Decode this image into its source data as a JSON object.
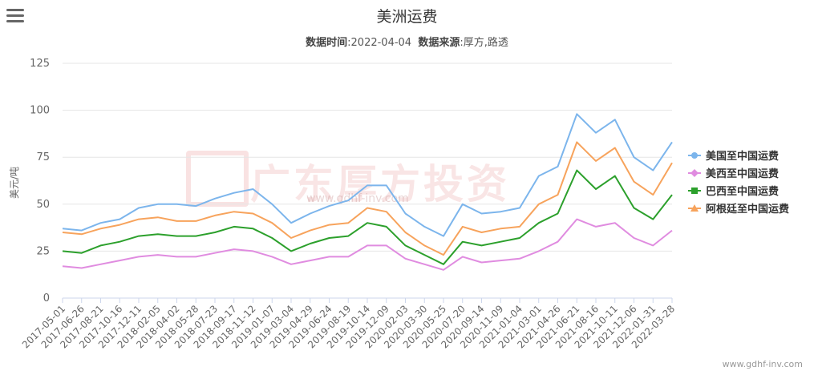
{
  "title": "美洲运费",
  "subtitle": {
    "date_label": "数据时间",
    "date_value": ":2022-04-04",
    "source_label": "数据来源",
    "source_value": ":厚方,路透"
  },
  "watermark": {
    "text": "广东厚方投资",
    "url": "www.gdhf-inv.com"
  },
  "footer_url": "www.gdhf-inv.com",
  "menu_icon": "hamburger-menu-icon",
  "chart_data": {
    "type": "line",
    "title": "美洲运费",
    "ylabel": "美元/吨",
    "ylim": [
      0,
      125
    ],
    "yticks": [
      0,
      25,
      50,
      75,
      100,
      125
    ],
    "grid": true,
    "legend_position": "right",
    "x_tick_labels": [
      "2017-05-01",
      "2017-06-26",
      "2017-08-21",
      "2017-10-16",
      "2017-12-11",
      "2018-02-05",
      "2018-04-02",
      "2018-05-28",
      "2018-07-23",
      "2018-09-17",
      "2018-11-12",
      "2019-01-07",
      "2019-03-04",
      "2019-04-29",
      "2019-06-24",
      "2019-08-19",
      "2019-10-14",
      "2019-12-09",
      "2020-02-03",
      "2020-03-30",
      "2020-05-25",
      "2020-07-20",
      "2020-09-14",
      "2020-11-09",
      "2021-01-04",
      "2021-03-01",
      "2021-04-26",
      "2021-06-21",
      "2021-08-16",
      "2021-10-11",
      "2021-12-06",
      "2022-01-31",
      "2022-03-28"
    ],
    "series": [
      {
        "name": "美国至中国运费",
        "color": "#7cb5ec",
        "marker": "circle",
        "values": [
          37,
          36,
          40,
          42,
          48,
          50,
          50,
          49,
          53,
          56,
          58,
          50,
          40,
          45,
          49,
          52,
          60,
          60,
          45,
          38,
          33,
          50,
          45,
          46,
          48,
          65,
          70,
          98,
          88,
          95,
          75,
          68,
          83
        ]
      },
      {
        "name": "美西至中国运费",
        "color": "#e08ce0",
        "marker": "diamond",
        "values": [
          17,
          16,
          18,
          20,
          22,
          23,
          22,
          22,
          24,
          26,
          25,
          22,
          18,
          20,
          22,
          22,
          28,
          28,
          21,
          18,
          15,
          22,
          19,
          20,
          21,
          25,
          30,
          42,
          38,
          40,
          32,
          28,
          36
        ]
      },
      {
        "name": "巴西至中国运费",
        "color": "#2ca02c",
        "marker": "square",
        "values": [
          25,
          24,
          28,
          30,
          33,
          34,
          33,
          33,
          35,
          38,
          37,
          32,
          25,
          29,
          32,
          33,
          40,
          38,
          28,
          23,
          18,
          30,
          28,
          30,
          32,
          40,
          45,
          68,
          58,
          65,
          48,
          42,
          55
        ]
      },
      {
        "name": "阿根廷至中国运费",
        "color": "#f7a35c",
        "marker": "triangle",
        "values": [
          35,
          34,
          37,
          39,
          42,
          43,
          41,
          41,
          44,
          46,
          45,
          40,
          32,
          36,
          39,
          40,
          48,
          46,
          35,
          28,
          23,
          38,
          35,
          37,
          38,
          50,
          55,
          83,
          73,
          80,
          62,
          55,
          72
        ]
      }
    ]
  }
}
